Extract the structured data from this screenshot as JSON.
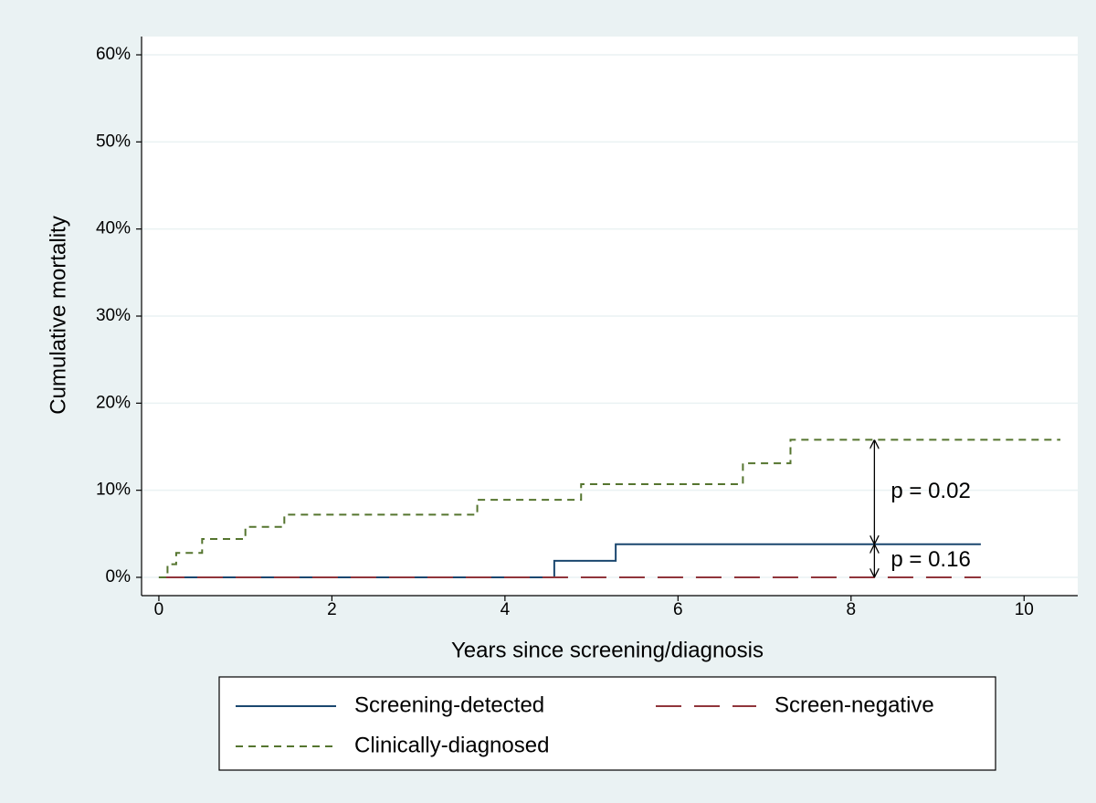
{
  "chart_data": {
    "type": "line",
    "step": "post",
    "y_label": "Cumulative mortality",
    "x_label": "Years since screening/diagnosis",
    "xlim": [
      -0.2,
      10.62
    ],
    "ylim": [
      -2.1,
      62.1
    ],
    "xticks": [
      0,
      2,
      4,
      6,
      8,
      10
    ],
    "yticks": [
      {
        "value": 0,
        "label": "0%"
      },
      {
        "value": 10,
        "label": "10%"
      },
      {
        "value": 20,
        "label": "20%"
      },
      {
        "value": 30,
        "label": "30%"
      },
      {
        "value": 40,
        "label": "40%"
      },
      {
        "value": 50,
        "label": "50%"
      },
      {
        "value": 60,
        "label": "60%"
      }
    ],
    "grid": true,
    "legend_position": "bottom",
    "series": [
      {
        "name": "Screening-detected",
        "color": "#1a476f",
        "dash": "solid",
        "x": [
          0,
          4.57,
          5.28,
          9.5
        ],
        "values": [
          0,
          1.9,
          3.8,
          3.8
        ]
      },
      {
        "name": "Screen-negative",
        "color": "#90353b",
        "dash": "longdash",
        "x": [
          0,
          9.5
        ],
        "values": [
          0,
          0
        ]
      },
      {
        "name": "Clinically-diagnosed",
        "color": "#55752f",
        "dash": "shortdash",
        "x": [
          0,
          0.1,
          0.2,
          0.5,
          1.0,
          1.45,
          3.68,
          4.88,
          6.75,
          7.3,
          10.42
        ],
        "values": [
          0,
          1.5,
          2.8,
          4.4,
          5.8,
          7.2,
          8.9,
          10.7,
          13.1,
          15.8,
          15.8
        ]
      }
    ],
    "annotations": [
      {
        "text": "p = 0.02",
        "x": 8.27,
        "y_from": 3.8,
        "y_to": 15.8
      },
      {
        "text": "p = 0.16",
        "x": 8.27,
        "y_from": 0,
        "y_to": 3.8
      }
    ]
  }
}
